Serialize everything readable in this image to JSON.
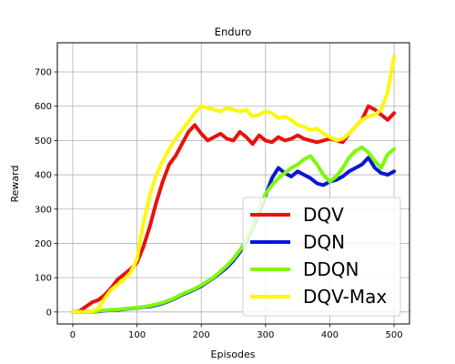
{
  "chart_data": {
    "type": "line",
    "title": "Enduro",
    "xlabel": "Episodes",
    "ylabel": "Reward",
    "xlim": [
      -24,
      524
    ],
    "ylim": [
      -35,
      785
    ],
    "xticks": [
      0,
      100,
      200,
      300,
      400,
      500
    ],
    "yticks": [
      0,
      100,
      200,
      300,
      400,
      500,
      600,
      700
    ],
    "grid": true,
    "legend_position": "lower-right",
    "series": [
      {
        "name": "DQV",
        "color": "#e8120c",
        "points": [
          [
            0,
            0
          ],
          [
            10,
            2
          ],
          [
            20,
            15
          ],
          [
            30,
            28
          ],
          [
            40,
            35
          ],
          [
            50,
            50
          ],
          [
            60,
            70
          ],
          [
            70,
            95
          ],
          [
            80,
            110
          ],
          [
            90,
            125
          ],
          [
            100,
            145
          ],
          [
            110,
            190
          ],
          [
            120,
            250
          ],
          [
            130,
            320
          ],
          [
            140,
            380
          ],
          [
            150,
            430
          ],
          [
            160,
            455
          ],
          [
            170,
            490
          ],
          [
            180,
            525
          ],
          [
            190,
            545
          ],
          [
            200,
            520
          ],
          [
            210,
            500
          ],
          [
            220,
            510
          ],
          [
            230,
            520
          ],
          [
            240,
            505
          ],
          [
            250,
            500
          ],
          [
            260,
            525
          ],
          [
            270,
            510
          ],
          [
            280,
            490
          ],
          [
            290,
            515
          ],
          [
            300,
            500
          ],
          [
            310,
            495
          ],
          [
            320,
            510
          ],
          [
            330,
            500
          ],
          [
            340,
            505
          ],
          [
            350,
            515
          ],
          [
            360,
            505
          ],
          [
            370,
            500
          ],
          [
            380,
            495
          ],
          [
            390,
            500
          ],
          [
            400,
            505
          ],
          [
            410,
            500
          ],
          [
            420,
            495
          ],
          [
            430,
            520
          ],
          [
            440,
            540
          ],
          [
            450,
            560
          ],
          [
            460,
            600
          ],
          [
            470,
            590
          ],
          [
            480,
            575
          ],
          [
            490,
            560
          ],
          [
            500,
            580
          ]
        ]
      },
      {
        "name": "DQN",
        "color": "#0a16d6",
        "points": [
          [
            0,
            0
          ],
          [
            10,
            0
          ],
          [
            20,
            0
          ],
          [
            30,
            0
          ],
          [
            40,
            2
          ],
          [
            50,
            4
          ],
          [
            60,
            5
          ],
          [
            70,
            6
          ],
          [
            80,
            8
          ],
          [
            90,
            10
          ],
          [
            100,
            12
          ],
          [
            110,
            14
          ],
          [
            120,
            16
          ],
          [
            130,
            20
          ],
          [
            140,
            25
          ],
          [
            150,
            32
          ],
          [
            160,
            40
          ],
          [
            170,
            50
          ],
          [
            180,
            58
          ],
          [
            190,
            66
          ],
          [
            200,
            75
          ],
          [
            210,
            88
          ],
          [
            220,
            100
          ],
          [
            230,
            115
          ],
          [
            240,
            130
          ],
          [
            250,
            150
          ],
          [
            260,
            175
          ],
          [
            270,
            205
          ],
          [
            280,
            245
          ],
          [
            290,
            290
          ],
          [
            300,
            340
          ],
          [
            310,
            390
          ],
          [
            320,
            420
          ],
          [
            330,
            405
          ],
          [
            340,
            395
          ],
          [
            350,
            410
          ],
          [
            360,
            400
          ],
          [
            370,
            390
          ],
          [
            380,
            375
          ],
          [
            390,
            370
          ],
          [
            400,
            380
          ],
          [
            410,
            385
          ],
          [
            420,
            395
          ],
          [
            430,
            410
          ],
          [
            440,
            420
          ],
          [
            450,
            430
          ],
          [
            460,
            450
          ],
          [
            470,
            420
          ],
          [
            480,
            405
          ],
          [
            490,
            400
          ],
          [
            500,
            410
          ]
        ]
      },
      {
        "name": "DDQN",
        "color": "#7ef70c",
        "points": [
          [
            0,
            0
          ],
          [
            10,
            0
          ],
          [
            20,
            0
          ],
          [
            30,
            0
          ],
          [
            40,
            3
          ],
          [
            50,
            5
          ],
          [
            60,
            6
          ],
          [
            70,
            7
          ],
          [
            80,
            9
          ],
          [
            90,
            11
          ],
          [
            100,
            13
          ],
          [
            110,
            15
          ],
          [
            120,
            18
          ],
          [
            130,
            22
          ],
          [
            140,
            27
          ],
          [
            150,
            34
          ],
          [
            160,
            42
          ],
          [
            170,
            52
          ],
          [
            180,
            60
          ],
          [
            190,
            68
          ],
          [
            200,
            78
          ],
          [
            210,
            90
          ],
          [
            220,
            102
          ],
          [
            230,
            118
          ],
          [
            240,
            135
          ],
          [
            250,
            155
          ],
          [
            260,
            180
          ],
          [
            270,
            210
          ],
          [
            280,
            250
          ],
          [
            290,
            300
          ],
          [
            300,
            345
          ],
          [
            310,
            370
          ],
          [
            320,
            390
          ],
          [
            330,
            405
          ],
          [
            340,
            420
          ],
          [
            350,
            430
          ],
          [
            360,
            445
          ],
          [
            370,
            455
          ],
          [
            380,
            430
          ],
          [
            390,
            400
          ],
          [
            400,
            380
          ],
          [
            410,
            395
          ],
          [
            420,
            420
          ],
          [
            430,
            450
          ],
          [
            440,
            470
          ],
          [
            450,
            480
          ],
          [
            460,
            465
          ],
          [
            470,
            440
          ],
          [
            480,
            420
          ],
          [
            490,
            460
          ],
          [
            500,
            475
          ]
        ]
      },
      {
        "name": "DQV-Max",
        "color": "#fdf70c",
        "points": [
          [
            0,
            0
          ],
          [
            10,
            0
          ],
          [
            20,
            0
          ],
          [
            30,
            2
          ],
          [
            40,
            10
          ],
          [
            50,
            40
          ],
          [
            60,
            65
          ],
          [
            70,
            80
          ],
          [
            80,
            95
          ],
          [
            90,
            115
          ],
          [
            100,
            155
          ],
          [
            110,
            260
          ],
          [
            120,
            340
          ],
          [
            130,
            400
          ],
          [
            140,
            440
          ],
          [
            150,
            475
          ],
          [
            160,
            505
          ],
          [
            170,
            530
          ],
          [
            180,
            555
          ],
          [
            190,
            580
          ],
          [
            200,
            600
          ],
          [
            210,
            595
          ],
          [
            220,
            590
          ],
          [
            230,
            585
          ],
          [
            240,
            595
          ],
          [
            250,
            590
          ],
          [
            260,
            585
          ],
          [
            270,
            590
          ],
          [
            280,
            570
          ],
          [
            290,
            575
          ],
          [
            300,
            585
          ],
          [
            310,
            580
          ],
          [
            320,
            565
          ],
          [
            330,
            570
          ],
          [
            340,
            560
          ],
          [
            350,
            545
          ],
          [
            360,
            540
          ],
          [
            370,
            530
          ],
          [
            380,
            535
          ],
          [
            390,
            520
          ],
          [
            400,
            510
          ],
          [
            410,
            500
          ],
          [
            420,
            505
          ],
          [
            430,
            520
          ],
          [
            440,
            540
          ],
          [
            450,
            560
          ],
          [
            460,
            570
          ],
          [
            470,
            575
          ],
          [
            480,
            590
          ],
          [
            490,
            640
          ],
          [
            500,
            745
          ]
        ]
      }
    ]
  }
}
